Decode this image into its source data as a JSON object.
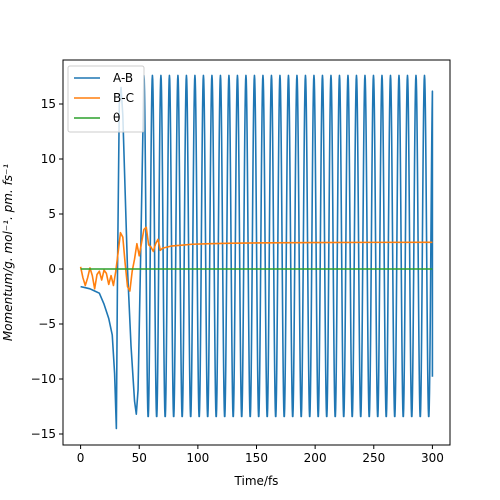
{
  "chart_data": {
    "type": "line",
    "xlabel": "Time/fs",
    "ylabel": "Momentum/g. mol⁻¹. pm. fs⁻¹",
    "xlim": [
      -15,
      315
    ],
    "ylim": [
      -16,
      19
    ],
    "xticks": [
      0,
      50,
      100,
      150,
      200,
      250,
      300
    ],
    "yticks": [
      -15,
      -10,
      -5,
      0,
      5,
      10,
      15
    ],
    "grid": false,
    "legend_position": "top-left",
    "series": [
      {
        "name": "A-B",
        "color": "#1f77b4",
        "description_points": [
          [
            0,
            -1.6
          ],
          [
            4,
            -1.7
          ],
          [
            8,
            -1.8
          ],
          [
            12,
            -2.0
          ],
          [
            16,
            -2.2
          ],
          [
            20,
            -3.2
          ],
          [
            24,
            -4.5
          ],
          [
            27,
            -6.0
          ],
          [
            29,
            -9.5
          ],
          [
            30.5,
            -14.5
          ],
          [
            31.5,
            0
          ],
          [
            33,
            15
          ],
          [
            34.5,
            16.5
          ],
          [
            36,
            14
          ],
          [
            38,
            7
          ],
          [
            40,
            0
          ],
          [
            43,
            -7
          ],
          [
            46,
            -12
          ],
          [
            47.5,
            -13.2
          ],
          [
            49,
            -11
          ],
          [
            51,
            0
          ],
          [
            54,
            17.6
          ]
        ],
        "oscillation": {
          "start": 54,
          "end": 300,
          "period": 7.25,
          "max": 17.6,
          "min": -13.5,
          "end_value": -9.8
        }
      },
      {
        "name": "B-C",
        "color": "#ff7f0e",
        "points": [
          [
            0,
            0.2
          ],
          [
            2,
            -0.8
          ],
          [
            4,
            -1.5
          ],
          [
            6,
            -0.8
          ],
          [
            8,
            0.1
          ],
          [
            10,
            -0.6
          ],
          [
            12,
            -1.8
          ],
          [
            14,
            -0.5
          ],
          [
            16,
            -0.2
          ],
          [
            18,
            -1.0
          ],
          [
            20,
            -0.1
          ],
          [
            22,
            -0.4
          ],
          [
            24,
            -1.4
          ],
          [
            26,
            -0.6
          ],
          [
            28,
            -1.5
          ],
          [
            30,
            -0.2
          ],
          [
            32,
            1.5
          ],
          [
            34,
            3.3
          ],
          [
            36,
            2.9
          ],
          [
            38,
            0.5
          ],
          [
            40,
            -1.6
          ],
          [
            42,
            -2.0
          ],
          [
            44,
            -0.2
          ],
          [
            46,
            0.9
          ],
          [
            48,
            2.3
          ],
          [
            50,
            1.2
          ],
          [
            52,
            2.4
          ],
          [
            54,
            3.6
          ],
          [
            56,
            3.8
          ],
          [
            58,
            2.2
          ],
          [
            60,
            2.0
          ],
          [
            62,
            1.6
          ],
          [
            64,
            2.3
          ],
          [
            66,
            2.7
          ],
          [
            68,
            1.7
          ],
          [
            70,
            1.9
          ],
          [
            74,
            2.0
          ],
          [
            78,
            2.1
          ],
          [
            85,
            2.15
          ],
          [
            95,
            2.25
          ],
          [
            110,
            2.3
          ],
          [
            130,
            2.35
          ],
          [
            160,
            2.38
          ],
          [
            200,
            2.4
          ],
          [
            250,
            2.42
          ],
          [
            300,
            2.43
          ]
        ]
      },
      {
        "name": "θ",
        "color": "#2ca02c",
        "points": [
          [
            0,
            0
          ],
          [
            300,
            0
          ]
        ]
      }
    ]
  }
}
